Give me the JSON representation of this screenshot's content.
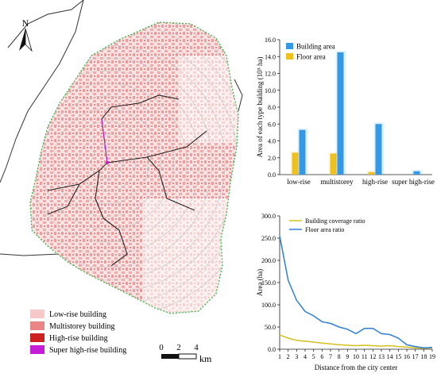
{
  "map": {
    "north_label": "N",
    "legend": [
      {
        "label": "Low-rise building",
        "color": "#f6c9c9"
      },
      {
        "label": "Multistorey building",
        "color": "#e98585"
      },
      {
        "label": "High-rise building",
        "color": "#cc1f1f"
      },
      {
        "label": "Super high-rise building",
        "color": "#c51ed6"
      }
    ],
    "scale_ticks": [
      "0",
      "2",
      "4"
    ],
    "scale_unit": "km",
    "colors": {
      "boundary": "#3bb54a",
      "river": "#333333",
      "rings": "#c8c8c8",
      "built": "#f2a9a9"
    }
  },
  "chart_data": [
    {
      "type": "bar",
      "categories": [
        "low-rise",
        "multistorey",
        "high-rise",
        "super high-rise"
      ],
      "series": [
        {
          "name": "Building area",
          "values": [
            5.3,
            14.5,
            6.0,
            0.4
          ],
          "color": "#3399e6"
        },
        {
          "name": "Floor area",
          "values": [
            2.6,
            2.5,
            0.3,
            0.0
          ],
          "color": "#f0c020"
        }
      ],
      "ylabel": "Area of each type building (10⁵ ha)",
      "yticks": [
        "0.0",
        "2.0",
        "4.0",
        "6.0",
        "8.0",
        "10.0",
        "12.0",
        "14.0",
        "16.0"
      ],
      "ylim": [
        0,
        16
      ],
      "legend_position": "top-left"
    },
    {
      "type": "line",
      "x": [
        1,
        2,
        3,
        4,
        5,
        6,
        7,
        8,
        9,
        10,
        11,
        12,
        13,
        14,
        15,
        16,
        17,
        18,
        19
      ],
      "series": [
        {
          "name": "Building coverage ratio",
          "values": [
            32,
            25,
            20,
            18,
            16,
            14,
            12,
            10,
            9,
            8,
            9,
            8,
            7,
            8,
            6,
            5,
            3,
            2,
            3
          ],
          "color": "#d4c020"
        },
        {
          "name": "Floor area ratio",
          "values": [
            255,
            155,
            110,
            85,
            75,
            62,
            58,
            50,
            45,
            35,
            47,
            47,
            35,
            33,
            25,
            10,
            6,
            3,
            4
          ],
          "color": "#2f7fd8"
        }
      ],
      "xlabel": "Distance from the city center",
      "ylabel": "Area (ha)",
      "yticks": [
        "0.0",
        "50.0",
        "100.0",
        "150.0",
        "200.0",
        "250.0",
        "300.0"
      ],
      "xticks": [
        "1",
        "2",
        "3",
        "4",
        "5",
        "6",
        "7",
        "8",
        "9",
        "10",
        "11",
        "12",
        "13",
        "14",
        "15",
        "16",
        "17",
        "18",
        "19"
      ],
      "ylim": [
        0,
        300
      ],
      "xlim": [
        1,
        19
      ],
      "legend_position": "top-left"
    }
  ]
}
